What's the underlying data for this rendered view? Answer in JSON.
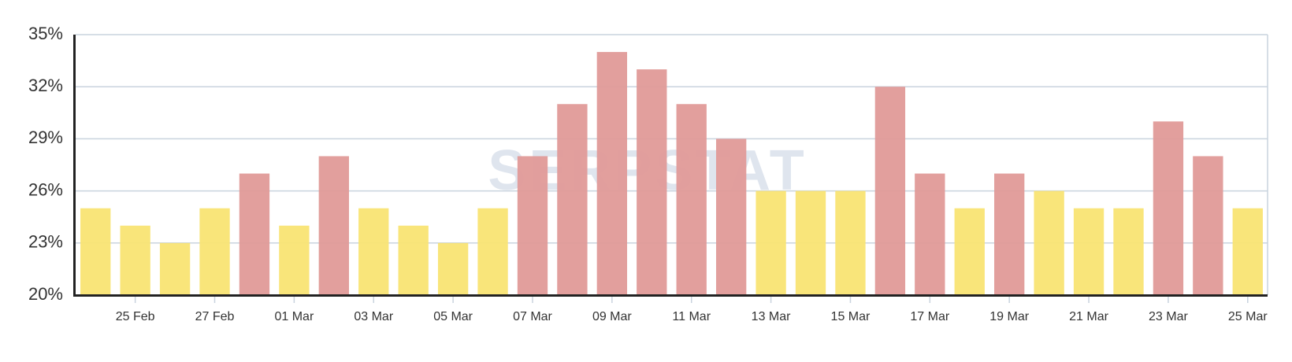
{
  "chart_data": {
    "type": "bar",
    "watermark": "SERPSTAT",
    "categories": [
      null,
      "25 Feb",
      null,
      "27 Feb",
      null,
      "01 Mar",
      null,
      "03 Mar",
      null,
      "05 Mar",
      null,
      "07 Mar",
      null,
      "09 Mar",
      null,
      "11 Mar",
      null,
      "13 Mar",
      null,
      "15 Mar",
      null,
      "17 Mar",
      null,
      "19 Mar",
      null,
      "21 Mar",
      null,
      "23 Mar",
      null,
      "25 Mar"
    ],
    "values": [
      25,
      24,
      23,
      25,
      27,
      24,
      28,
      25,
      24,
      23,
      25,
      28,
      31,
      34,
      33,
      31,
      29,
      26,
      26,
      26,
      32,
      27,
      25,
      27,
      26,
      25,
      25,
      30,
      28,
      25
    ],
    "colors": [
      "#f9e473",
      "#f9e473",
      "#f9e473",
      "#f9e473",
      "#e09a98",
      "#f9e473",
      "#e09a98",
      "#f9e473",
      "#f9e473",
      "#f9e473",
      "#f9e473",
      "#e09a98",
      "#e09a98",
      "#e09a98",
      "#e09a98",
      "#e09a98",
      "#e09a98",
      "#f9e473",
      "#f9e473",
      "#f9e473",
      "#e09a98",
      "#e09a98",
      "#f9e473",
      "#e09a98",
      "#f9e473",
      "#f9e473",
      "#f9e473",
      "#e09a98",
      "#e09a98",
      "#f9e473"
    ],
    "ylim": [
      20,
      35
    ],
    "yticks": [
      {
        "value": 20,
        "label": "20%"
      },
      {
        "value": 23,
        "label": "23%"
      },
      {
        "value": 26,
        "label": "26%"
      },
      {
        "value": 29,
        "label": "29%"
      },
      {
        "value": 32,
        "label": "32%"
      },
      {
        "value": 35,
        "label": "35%"
      }
    ],
    "grid": true
  }
}
